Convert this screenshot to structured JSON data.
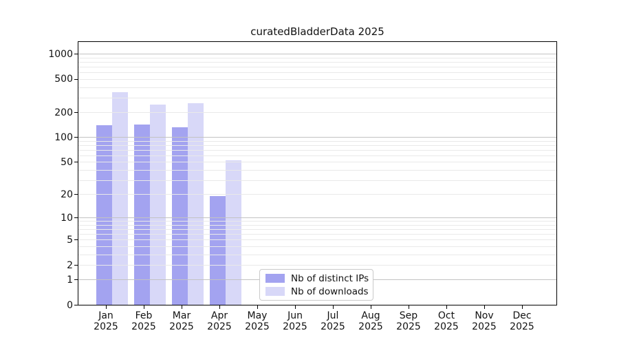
{
  "chart_data": {
    "type": "bar",
    "title": "curatedBladderData 2025",
    "scale": "log1p",
    "categories": [
      "Jan",
      "Feb",
      "Mar",
      "Apr",
      "May",
      "Jun",
      "Jul",
      "Aug",
      "Sep",
      "Oct",
      "Nov",
      "Dec"
    ],
    "x_tick_second_line": "2025",
    "series": [
      {
        "name": "Nb of distinct IPs",
        "color": "#a3a3f0",
        "values": [
          142,
          144,
          132,
          19,
          0,
          0,
          0,
          0,
          0,
          0,
          0,
          0
        ]
      },
      {
        "name": "Nb of downloads",
        "color": "#d8d8f8",
        "values": [
          351,
          251,
          261,
          53,
          0,
          0,
          0,
          0,
          0,
          0,
          0,
          0
        ]
      }
    ],
    "y_ticks": [
      0,
      1,
      2,
      5,
      10,
      20,
      50,
      100,
      200,
      500,
      1000
    ],
    "ylim": [
      0,
      1430
    ],
    "grid": true,
    "legend_position": "bottom-center",
    "colors": {
      "major_grid": "#c2c2c2",
      "minor_grid": "#e9e9e9",
      "axis": "#000000",
      "text": "#111111"
    }
  }
}
